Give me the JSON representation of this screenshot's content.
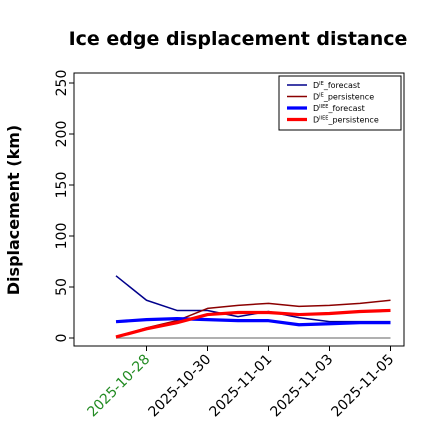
{
  "chart_data": {
    "type": "line",
    "title": "Ice edge displacement distance",
    "xlabel": "",
    "ylabel": "Displacement (km)",
    "x": [
      "2025-10-27",
      "2025-10-28",
      "2025-10-29",
      "2025-10-30",
      "2025-10-31",
      "2025-11-01",
      "2025-11-02",
      "2025-11-03",
      "2025-11-04",
      "2025-11-05"
    ],
    "xticks": [
      "2025-10-28",
      "2025-10-30",
      "2025-11-01",
      "2025-11-03",
      "2025-11-05"
    ],
    "xtick_colors": [
      "#228b22",
      "#000000",
      "#000000",
      "#000000",
      "#000000"
    ],
    "ylim": [
      -5,
      260
    ],
    "yticks": [
      0,
      50,
      100,
      150,
      200,
      250
    ],
    "grid": false,
    "legend_position": "top-right",
    "series": [
      {
        "name": "D^IE_forecast",
        "legend_main": "D",
        "legend_sup": "IE",
        "legend_rest": "_forecast",
        "color": "#00008b",
        "width": 1.5,
        "values": [
          61,
          37,
          27,
          27,
          21,
          26,
          20,
          16,
          16,
          16
        ]
      },
      {
        "name": "D^IE_persistence",
        "legend_main": "D",
        "legend_sup": "IE",
        "legend_rest": "_persistence",
        "color": "#8b0000",
        "width": 1.5,
        "values": [
          1,
          10,
          17,
          29,
          32,
          34,
          31,
          32,
          34,
          37
        ]
      },
      {
        "name": "D^IIEE_forecast",
        "legend_main": "D",
        "legend_sup": "IIEE",
        "legend_rest": "_forecast",
        "color": "#0000ff",
        "width": 3.2,
        "values": [
          16,
          18,
          19,
          18,
          17,
          17,
          13,
          14,
          15,
          15
        ]
      },
      {
        "name": "D^IIEE_persistence",
        "legend_main": "D",
        "legend_sup": "IIEE",
        "legend_rest": "_persistence",
        "color": "#ff0000",
        "width": 3.2,
        "values": [
          1,
          9,
          15,
          23,
          25,
          25,
          23,
          24,
          26,
          27
        ]
      }
    ],
    "baseline": {
      "value": 0,
      "color": "#808080"
    }
  }
}
